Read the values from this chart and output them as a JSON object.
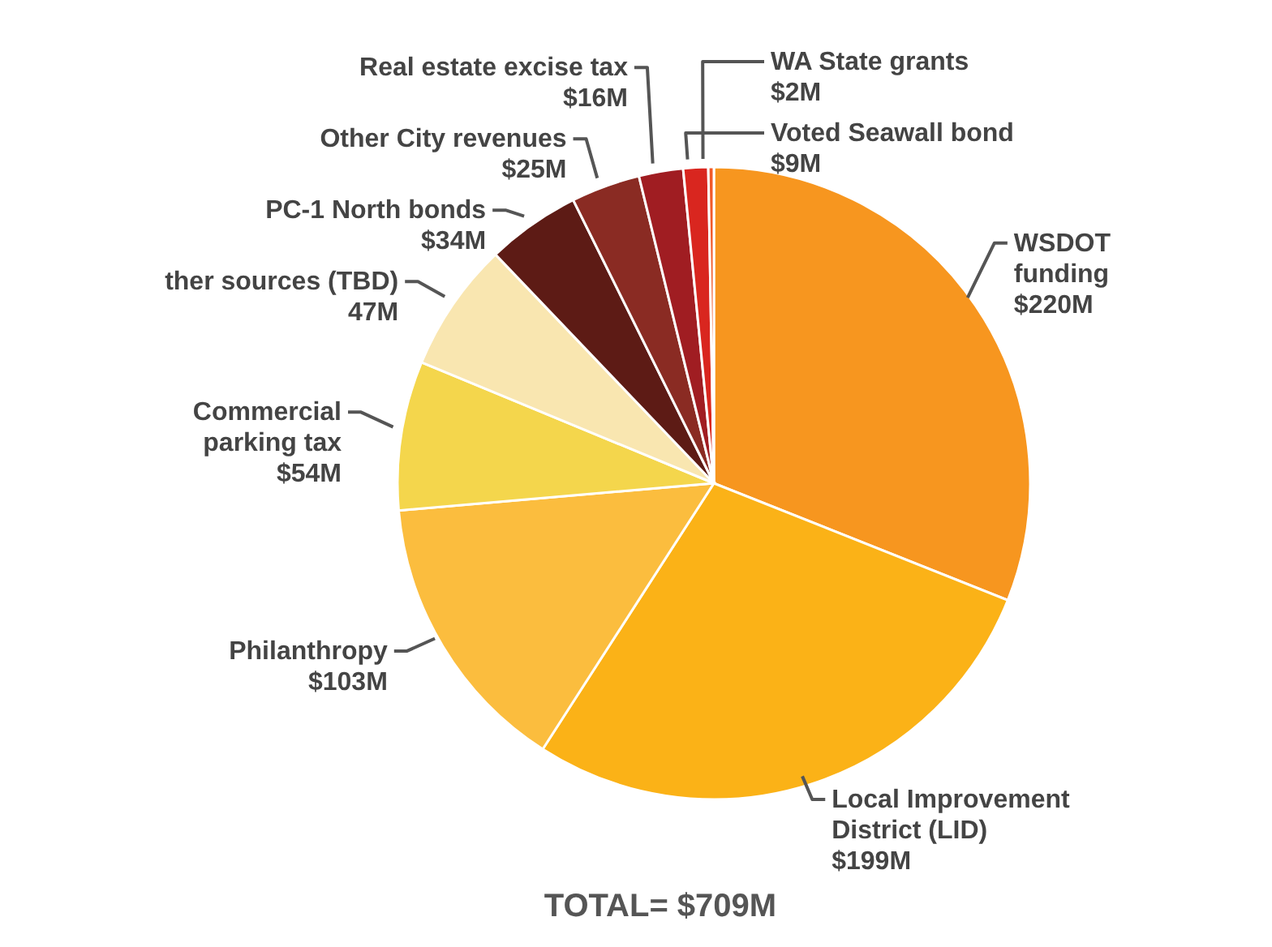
{
  "chart_data": {
    "type": "pie",
    "title": "TOTAL= $709M",
    "categories": [
      "WSDOT\nfunding",
      "Local Improvement\nDistrict (LID)",
      "Philanthropy",
      "Commercial\nparking tax",
      "ther sources (TBD)",
      "PC-1 North bonds",
      "Other City revenues",
      "Real estate excise tax",
      "Voted Seawall bond",
      "WA State grants"
    ],
    "values": [
      220,
      199,
      103,
      54,
      47,
      34,
      25,
      16,
      9,
      2
    ],
    "value_labels": [
      "$220M",
      "$199M",
      "$103M",
      "$54M",
      "47M",
      "$34M",
      "$25M",
      "$16M",
      "$9M",
      "$2M"
    ],
    "colors": [
      "#f7961f",
      "#fbb217",
      "#fbbd3e",
      "#f4d64c",
      "#f9e6b0",
      "#5d1b15",
      "#8a2b23",
      "#a01d22",
      "#d9261f",
      "#f15a29"
    ]
  }
}
